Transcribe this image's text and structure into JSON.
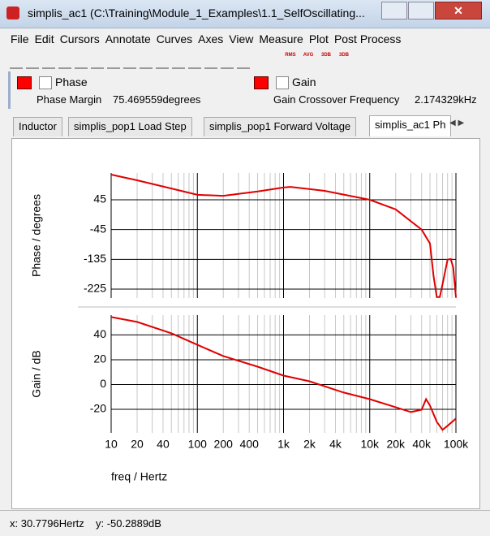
{
  "window": {
    "title": "simplis_ac1 (C:\\Training\\Module_1_Examples\\1.1_SelfOscillating..."
  },
  "menu": [
    "File",
    "Edit",
    "Cursors",
    "Annotate",
    "Curves",
    "Axes",
    "View",
    "Measure",
    "Plot",
    "Post Process"
  ],
  "toolbar_labels": [
    "RMS",
    "AVG",
    "3DB",
    "3DB"
  ],
  "measurements": [
    {
      "label": "Phase Margin",
      "value": "75.469559degrees"
    },
    {
      "label": "Gain Crossover Frequency",
      "value": "2.174329kHz"
    }
  ],
  "tabs": [
    "Inductor",
    "simplis_pop1 Load Step",
    "simplis_pop1 Forward Voltage",
    "simplis_ac1 Ph"
  ],
  "chart_data": [
    {
      "type": "line",
      "ylabel": "Phase / degrees",
      "log_x": true,
      "xlim": [
        10,
        100000
      ],
      "ylim": [
        -252,
        126
      ],
      "yticks": [
        45,
        -45,
        -135,
        -225
      ],
      "grid": true,
      "x": [
        10,
        20,
        50,
        100,
        200,
        500,
        1000,
        1200,
        3000,
        10000,
        20000,
        40000,
        50000,
        55000,
        60000,
        65000,
        70000,
        80000,
        87000,
        93000,
        100000
      ],
      "series": [
        {
          "name": "Phase",
          "color": "#e00000",
          "values": [
            121,
            104,
            79,
            60,
            57,
            70,
            82,
            84,
            72,
            45,
            16,
            -45,
            -87,
            -185,
            -249,
            -249,
            -210,
            -136,
            -134,
            -160,
            -249
          ]
        }
      ]
    },
    {
      "type": "line",
      "ylabel": "Gain / dB",
      "xlabel": "freq / Hertz",
      "log_x": true,
      "xlim": [
        10,
        100000
      ],
      "ylim": [
        -39,
        56
      ],
      "yticks": [
        40,
        20,
        0,
        -20
      ],
      "grid": true,
      "xticks": [
        10,
        20,
        40,
        100,
        200,
        400,
        {
          "value": 1000,
          "label": "1k"
        },
        {
          "value": 2000,
          "label": "2k"
        },
        {
          "value": 4000,
          "label": "4k"
        },
        {
          "value": 10000,
          "label": "10k"
        },
        {
          "value": 20000,
          "label": "20k"
        },
        {
          "value": 40000,
          "label": "40k"
        },
        {
          "value": 100000,
          "label": "100k"
        }
      ],
      "x": [
        10,
        20,
        50,
        100,
        200,
        500,
        1000,
        2000,
        5000,
        10000,
        20000,
        30000,
        40000,
        45000,
        50000,
        60000,
        70000,
        80000,
        100000
      ],
      "series": [
        {
          "name": "Gain",
          "color": "#e00000",
          "values": [
            54.4,
            50.5,
            41.3,
            32,
            23,
            14.4,
            7.2,
            2.6,
            -6.5,
            -11.8,
            -18.3,
            -22.2,
            -20.3,
            -11.8,
            -17,
            -30.1,
            -36.6,
            -33.3,
            -27.5
          ]
        }
      ]
    }
  ],
  "status": {
    "x": "x: 30.7796Hertz",
    "y": "y: -50.2889dB"
  }
}
